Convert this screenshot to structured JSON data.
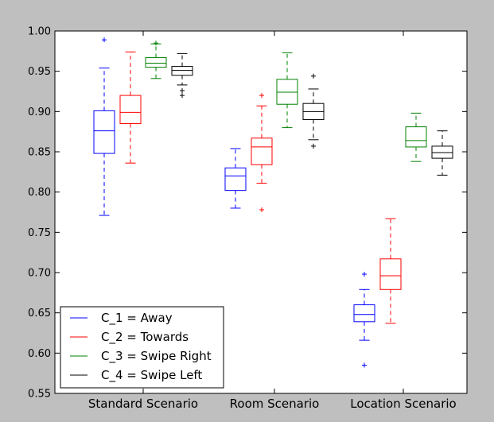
{
  "chart_data": {
    "type": "box",
    "categories": [
      "Standard Scenario",
      "Room Scenario",
      "Location Scenario"
    ],
    "ylim": [
      0.55,
      1.0
    ],
    "yticks": [
      "0.55",
      "0.60",
      "0.65",
      "0.70",
      "0.75",
      "0.80",
      "0.85",
      "0.90",
      "0.95",
      "1.00"
    ],
    "ytick_values": [
      0.55,
      0.6,
      0.65,
      0.7,
      0.75,
      0.8,
      0.85,
      0.9,
      0.95,
      1.0
    ],
    "grid": false,
    "legend_position": "lower-left",
    "series": [
      {
        "name": "C_1 = Away",
        "color": "#0000ff",
        "boxes": [
          {
            "category": "Standard Scenario",
            "whisker_low": 0.771,
            "q1": 0.848,
            "median": 0.876,
            "q3": 0.901,
            "whisker_high": 0.954,
            "outliers": [
              0.989
            ]
          },
          {
            "category": "Room Scenario",
            "whisker_low": 0.78,
            "q1": 0.802,
            "median": 0.82,
            "q3": 0.83,
            "whisker_high": 0.854,
            "outliers": []
          },
          {
            "category": "Location Scenario",
            "whisker_low": 0.616,
            "q1": 0.639,
            "median": 0.648,
            "q3": 0.66,
            "whisker_high": 0.679,
            "outliers": [
              0.698,
              0.585
            ]
          }
        ]
      },
      {
        "name": "C_2 = Towards",
        "color": "#ff0000",
        "boxes": [
          {
            "category": "Standard Scenario",
            "whisker_low": 0.836,
            "q1": 0.885,
            "median": 0.899,
            "q3": 0.92,
            "whisker_high": 0.974,
            "outliers": []
          },
          {
            "category": "Room Scenario",
            "whisker_low": 0.811,
            "q1": 0.834,
            "median": 0.856,
            "q3": 0.867,
            "whisker_high": 0.907,
            "outliers": [
              0.92,
              0.778
            ]
          },
          {
            "category": "Location Scenario",
            "whisker_low": 0.637,
            "q1": 0.679,
            "median": 0.696,
            "q3": 0.717,
            "whisker_high": 0.767,
            "outliers": []
          }
        ]
      },
      {
        "name": "C_3 = Swipe Right",
        "color": "#008000",
        "boxes": [
          {
            "category": "Standard Scenario",
            "whisker_low": 0.941,
            "q1": 0.955,
            "median": 0.96,
            "q3": 0.967,
            "whisker_high": 0.984,
            "outliers": [
              0.985
            ]
          },
          {
            "category": "Room Scenario",
            "whisker_low": 0.88,
            "q1": 0.909,
            "median": 0.924,
            "q3": 0.94,
            "whisker_high": 0.973,
            "outliers": []
          },
          {
            "category": "Location Scenario",
            "whisker_low": 0.838,
            "q1": 0.856,
            "median": 0.864,
            "q3": 0.881,
            "whisker_high": 0.898,
            "outliers": []
          }
        ]
      },
      {
        "name": "C_4 = Swipe Left",
        "color": "#000000",
        "boxes": [
          {
            "category": "Standard Scenario",
            "whisker_low": 0.933,
            "q1": 0.945,
            "median": 0.951,
            "q3": 0.956,
            "whisker_high": 0.972,
            "outliers": [
              0.92,
              0.926
            ]
          },
          {
            "category": "Room Scenario",
            "whisker_low": 0.865,
            "q1": 0.89,
            "median": 0.9,
            "q3": 0.91,
            "whisker_high": 0.928,
            "outliers": [
              0.944,
              0.857
            ]
          },
          {
            "category": "Location Scenario",
            "whisker_low": 0.821,
            "q1": 0.842,
            "median": 0.849,
            "q3": 0.857,
            "whisker_high": 0.876,
            "outliers": []
          }
        ]
      }
    ]
  }
}
